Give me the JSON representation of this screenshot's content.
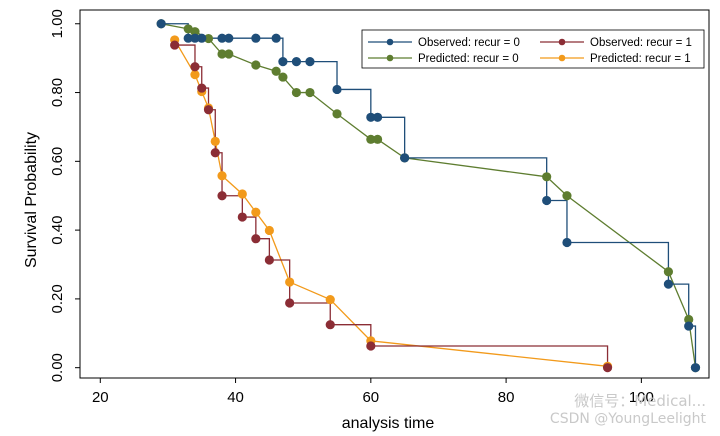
{
  "chart_data": {
    "type": "line",
    "title": "",
    "xlabel": "analysis time",
    "ylabel": "Survival Probability",
    "xlim": [
      17,
      110
    ],
    "ylim": [
      -0.03,
      1.04
    ],
    "x_ticks": [
      20,
      40,
      60,
      80,
      100
    ],
    "x_tick_labels": [
      "20",
      "40",
      "60",
      "80",
      "100"
    ],
    "y_ticks": [
      0,
      0.2,
      0.4,
      0.6,
      0.8,
      1.0
    ],
    "y_tick_labels": [
      "0.00",
      "0.20",
      "0.40",
      "0.60",
      "0.80",
      "1.00"
    ],
    "grid": false,
    "legend_position": "top-right",
    "series": [
      {
        "name": "Observed: recur = 0",
        "style": "step",
        "color": "#1f4e79",
        "x": [
          29,
          33,
          34,
          35,
          38,
          39,
          43,
          46,
          47,
          49,
          51,
          55,
          60,
          61,
          65,
          86,
          89,
          104,
          107,
          108
        ],
        "y": [
          1.0,
          0.958,
          0.958,
          0.958,
          0.958,
          0.958,
          0.958,
          0.958,
          0.89,
          0.89,
          0.89,
          0.809,
          0.728,
          0.728,
          0.61,
          0.486,
          0.364,
          0.243,
          0.121,
          0.0
        ]
      },
      {
        "name": "Observed: recur = 1",
        "style": "step",
        "color": "#8b2d35",
        "x": [
          31,
          34,
          35,
          36,
          37,
          38,
          41,
          43,
          45,
          48,
          54,
          60,
          95
        ],
        "y": [
          0.938,
          0.875,
          0.813,
          0.75,
          0.625,
          0.5,
          0.438,
          0.375,
          0.313,
          0.188,
          0.125,
          0.063,
          0.0
        ]
      },
      {
        "name": "Predicted: recur = 0",
        "style": "line",
        "color": "#5e7d30",
        "x": [
          29,
          33,
          34,
          36,
          38,
          39,
          43,
          46,
          47,
          49,
          51,
          55,
          60,
          61,
          65,
          86,
          89,
          104,
          107,
          108
        ],
        "y": [
          1.0,
          0.985,
          0.977,
          0.957,
          0.912,
          0.912,
          0.88,
          0.862,
          0.845,
          0.8,
          0.8,
          0.738,
          0.664,
          0.664,
          0.61,
          0.555,
          0.5,
          0.279,
          0.14,
          0.0
        ]
      },
      {
        "name": "Predicted: recur = 1",
        "style": "line",
        "color": "#f29a1b",
        "x": [
          31,
          34,
          35,
          36,
          37,
          38,
          41,
          43,
          45,
          48,
          54,
          60,
          95
        ],
        "y": [
          0.953,
          0.852,
          0.803,
          0.755,
          0.658,
          0.558,
          0.505,
          0.452,
          0.399,
          0.249,
          0.198,
          0.078,
          0.004
        ]
      }
    ]
  },
  "watermark": {
    "line1": "微信号：Medical...",
    "line2": "CSDN @YoungLeelight"
  }
}
